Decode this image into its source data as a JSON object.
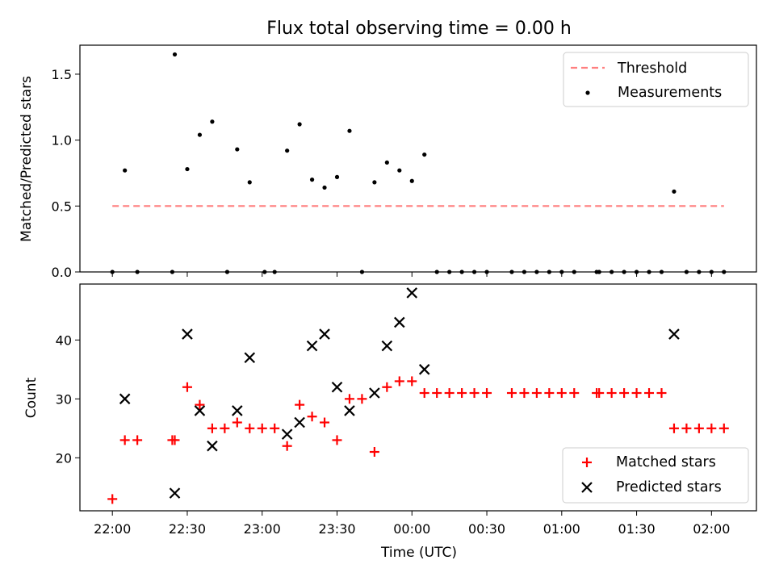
{
  "title": "Flux total observing time = 0.00 h",
  "colors": {
    "threshold": "#ff7f7f",
    "measurement": "#000000",
    "matched": "#ff0000",
    "predicted": "#000000"
  },
  "chart_data": [
    {
      "type": "scatter",
      "panel": "top",
      "ylabel": "Matched/Predicted stars",
      "ylim": [
        0,
        1.72
      ],
      "yticks": [
        {
          "value": 0.0,
          "label": "0.0"
        },
        {
          "value": 0.5,
          "label": "0.5"
        },
        {
          "value": 1.0,
          "label": "1.0"
        },
        {
          "value": 1.5,
          "label": "1.5"
        }
      ],
      "grid": false,
      "legend": "top-right",
      "series": [
        {
          "name": "Threshold",
          "kind": "dashed-line",
          "x": [
            "22:00",
            "02:05"
          ],
          "y": [
            0.5,
            0.5
          ]
        },
        {
          "name": "Measurements",
          "kind": "dots",
          "points": [
            {
              "x": "22:00",
              "y": 0.0
            },
            {
              "x": "22:05",
              "y": 0.77
            },
            {
              "x": "22:10",
              "y": 0.0
            },
            {
              "x": "22:24",
              "y": 0.0
            },
            {
              "x": "22:25",
              "y": 1.65
            },
            {
              "x": "22:30",
              "y": 0.78
            },
            {
              "x": "22:35",
              "y": 1.04
            },
            {
              "x": "22:40",
              "y": 1.14
            },
            {
              "x": "22:46",
              "y": 0.0
            },
            {
              "x": "22:50",
              "y": 0.93
            },
            {
              "x": "22:55",
              "y": 0.68
            },
            {
              "x": "23:01",
              "y": 0.0
            },
            {
              "x": "23:05",
              "y": 0.0
            },
            {
              "x": "23:10",
              "y": 0.92
            },
            {
              "x": "23:15",
              "y": 1.12
            },
            {
              "x": "23:20",
              "y": 0.7
            },
            {
              "x": "23:25",
              "y": 0.64
            },
            {
              "x": "23:30",
              "y": 0.72
            },
            {
              "x": "23:35",
              "y": 1.07
            },
            {
              "x": "23:40",
              "y": 0.0
            },
            {
              "x": "23:45",
              "y": 0.68
            },
            {
              "x": "23:50",
              "y": 0.83
            },
            {
              "x": "23:55",
              "y": 0.77
            },
            {
              "x": "00:00",
              "y": 0.69
            },
            {
              "x": "00:05",
              "y": 0.89
            },
            {
              "x": "00:10",
              "y": 0.0
            },
            {
              "x": "00:15",
              "y": 0.0
            },
            {
              "x": "00:20",
              "y": 0.0
            },
            {
              "x": "00:25",
              "y": 0.0
            },
            {
              "x": "00:30",
              "y": 0.0
            },
            {
              "x": "00:40",
              "y": 0.0
            },
            {
              "x": "00:45",
              "y": 0.0
            },
            {
              "x": "00:50",
              "y": 0.0
            },
            {
              "x": "00:55",
              "y": 0.0
            },
            {
              "x": "01:00",
              "y": 0.0
            },
            {
              "x": "01:05",
              "y": 0.0
            },
            {
              "x": "01:14",
              "y": 0.0
            },
            {
              "x": "01:15",
              "y": 0.0
            },
            {
              "x": "01:20",
              "y": 0.0
            },
            {
              "x": "01:25",
              "y": 0.0
            },
            {
              "x": "01:30",
              "y": 0.0
            },
            {
              "x": "01:35",
              "y": 0.0
            },
            {
              "x": "01:40",
              "y": 0.0
            },
            {
              "x": "01:45",
              "y": 0.61
            },
            {
              "x": "01:50",
              "y": 0.0
            },
            {
              "x": "01:55",
              "y": 0.0
            },
            {
              "x": "02:00",
              "y": 0.0
            },
            {
              "x": "02:05",
              "y": 0.0
            }
          ]
        }
      ]
    },
    {
      "type": "scatter",
      "panel": "bottom",
      "xlabel": "Time (UTC)",
      "ylabel": "Count",
      "ylim": [
        11,
        49.5
      ],
      "yticks": [
        {
          "value": 20,
          "label": "20"
        },
        {
          "value": 30,
          "label": "30"
        },
        {
          "value": 40,
          "label": "40"
        }
      ],
      "xticks": [
        "22:00",
        "22:30",
        "23:00",
        "23:30",
        "00:00",
        "00:30",
        "01:00",
        "01:30",
        "02:00"
      ],
      "xrange": [
        "21:47",
        "02:18"
      ],
      "grid": false,
      "legend": "bottom-right",
      "series": [
        {
          "name": "Matched stars",
          "marker": "plus",
          "points": [
            {
              "x": "22:00",
              "y": 13
            },
            {
              "x": "22:05",
              "y": 23
            },
            {
              "x": "22:10",
              "y": 23
            },
            {
              "x": "22:24",
              "y": 23
            },
            {
              "x": "22:25",
              "y": 23
            },
            {
              "x": "22:30",
              "y": 32
            },
            {
              "x": "22:35",
              "y": 29
            },
            {
              "x": "22:40",
              "y": 25
            },
            {
              "x": "22:45",
              "y": 25
            },
            {
              "x": "22:50",
              "y": 26
            },
            {
              "x": "22:55",
              "y": 25
            },
            {
              "x": "23:00",
              "y": 25
            },
            {
              "x": "23:05",
              "y": 25
            },
            {
              "x": "23:10",
              "y": 22
            },
            {
              "x": "23:15",
              "y": 29
            },
            {
              "x": "23:20",
              "y": 27
            },
            {
              "x": "23:25",
              "y": 26
            },
            {
              "x": "23:30",
              "y": 23
            },
            {
              "x": "23:35",
              "y": 30
            },
            {
              "x": "23:40",
              "y": 30
            },
            {
              "x": "23:45",
              "y": 21
            },
            {
              "x": "23:50",
              "y": 32
            },
            {
              "x": "23:55",
              "y": 33
            },
            {
              "x": "00:00",
              "y": 33
            },
            {
              "x": "00:05",
              "y": 31
            },
            {
              "x": "00:10",
              "y": 31
            },
            {
              "x": "00:15",
              "y": 31
            },
            {
              "x": "00:20",
              "y": 31
            },
            {
              "x": "00:25",
              "y": 31
            },
            {
              "x": "00:30",
              "y": 31
            },
            {
              "x": "00:40",
              "y": 31
            },
            {
              "x": "00:45",
              "y": 31
            },
            {
              "x": "00:50",
              "y": 31
            },
            {
              "x": "00:55",
              "y": 31
            },
            {
              "x": "01:00",
              "y": 31
            },
            {
              "x": "01:05",
              "y": 31
            },
            {
              "x": "01:14",
              "y": 31
            },
            {
              "x": "01:15",
              "y": 31
            },
            {
              "x": "01:20",
              "y": 31
            },
            {
              "x": "01:25",
              "y": 31
            },
            {
              "x": "01:30",
              "y": 31
            },
            {
              "x": "01:35",
              "y": 31
            },
            {
              "x": "01:40",
              "y": 31
            },
            {
              "x": "01:45",
              "y": 25
            },
            {
              "x": "01:50",
              "y": 25
            },
            {
              "x": "01:55",
              "y": 25
            },
            {
              "x": "02:00",
              "y": 25
            },
            {
              "x": "02:05",
              "y": 25
            }
          ]
        },
        {
          "name": "Predicted stars",
          "marker": "x",
          "points": [
            {
              "x": "22:05",
              "y": 30
            },
            {
              "x": "22:25",
              "y": 14
            },
            {
              "x": "22:30",
              "y": 41
            },
            {
              "x": "22:35",
              "y": 28
            },
            {
              "x": "22:40",
              "y": 22
            },
            {
              "x": "22:50",
              "y": 28
            },
            {
              "x": "22:55",
              "y": 37
            },
            {
              "x": "23:10",
              "y": 24
            },
            {
              "x": "23:15",
              "y": 26
            },
            {
              "x": "23:20",
              "y": 39
            },
            {
              "x": "23:25",
              "y": 41
            },
            {
              "x": "23:30",
              "y": 32
            },
            {
              "x": "23:35",
              "y": 28
            },
            {
              "x": "23:45",
              "y": 31
            },
            {
              "x": "23:50",
              "y": 39
            },
            {
              "x": "23:55",
              "y": 43
            },
            {
              "x": "00:00",
              "y": 48
            },
            {
              "x": "00:05",
              "y": 35
            },
            {
              "x": "01:45",
              "y": 41
            }
          ]
        }
      ]
    }
  ]
}
